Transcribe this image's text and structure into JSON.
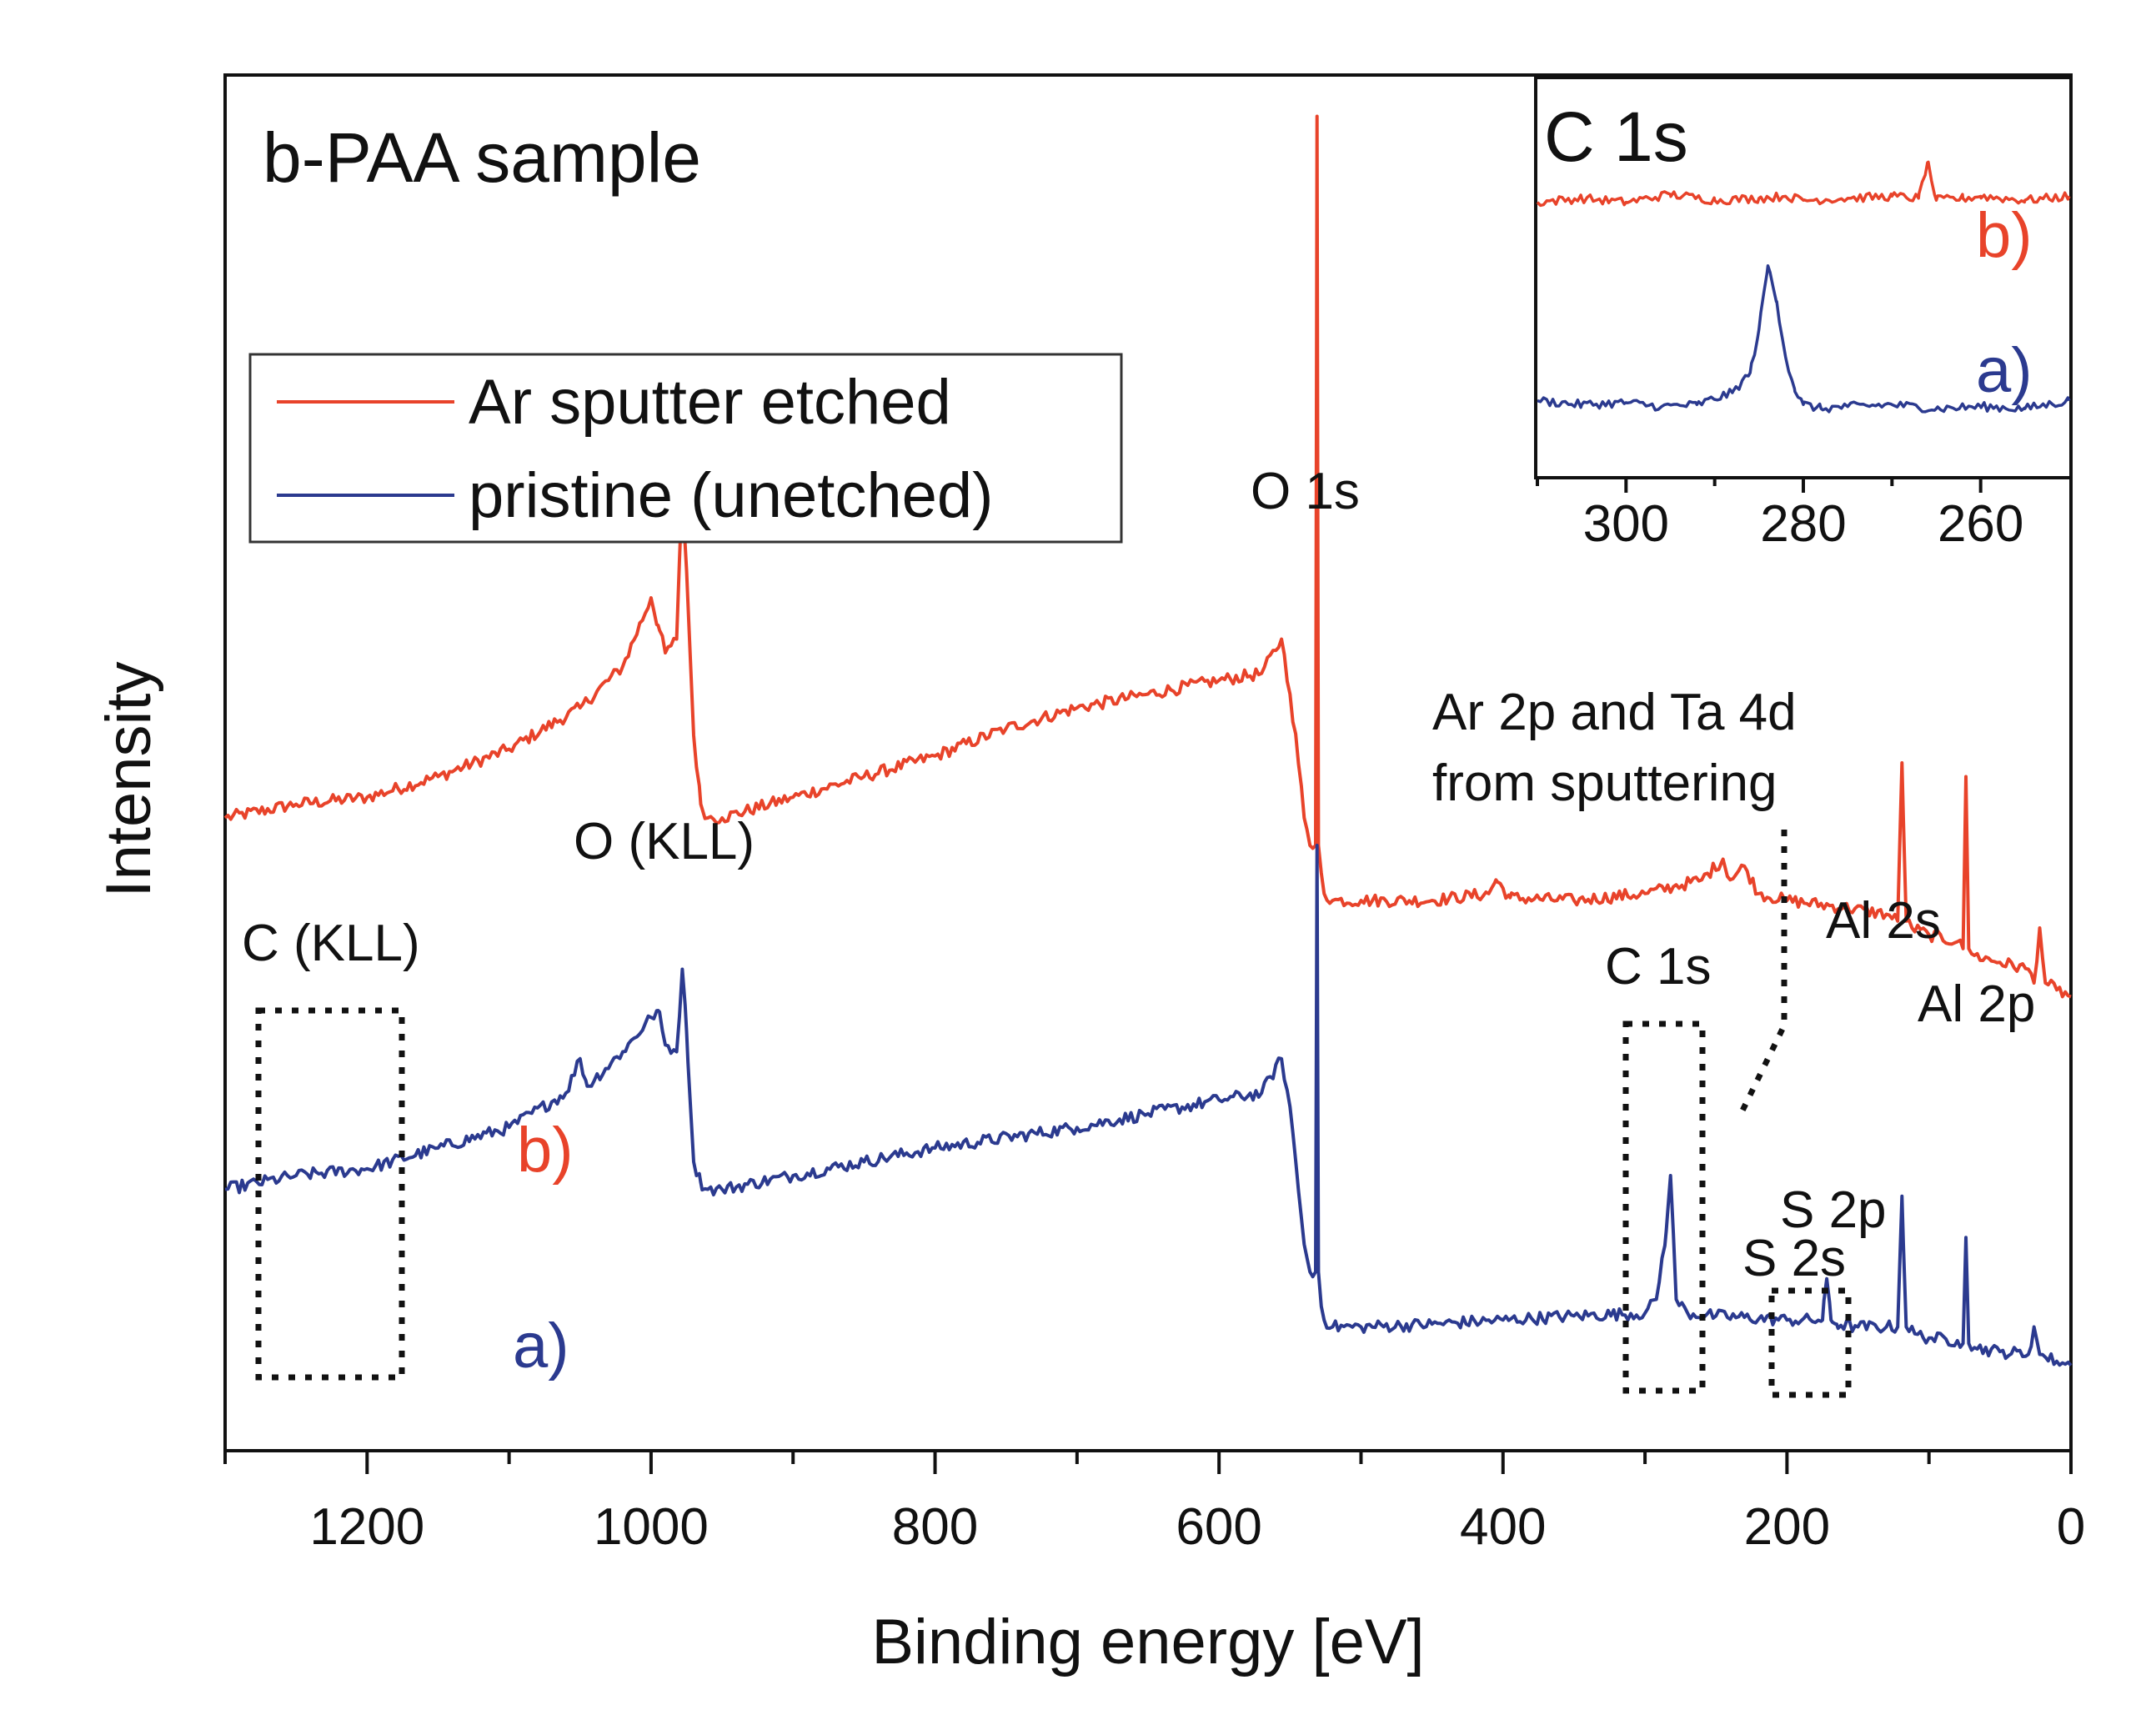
{
  "chart_data": [
    {
      "type": "line",
      "title": "b-PAA sample",
      "xlabel": "Binding energy [eV]",
      "ylabel": "Intensity",
      "xlim": [
        1300,
        0
      ],
      "ylim": [
        0,
        10
      ],
      "x_ticks": [
        1200,
        1000,
        800,
        600,
        400,
        200,
        0
      ],
      "x_tick_labels": [
        "1200",
        "1000",
        "800",
        "600",
        "400",
        "200",
        "0"
      ],
      "grid": false,
      "legend": {
        "position": "top-left",
        "entries": [
          {
            "label": "Ar sputter etched",
            "color": "#e8432a"
          },
          {
            "label": "pristine (unetched)",
            "color": "#2b3a8f"
          }
        ]
      },
      "series": [
        {
          "name": "Ar sputter etched",
          "tag": "b)",
          "color": "#e8432a",
          "x": [
            1300,
            1250,
            1200,
            1150,
            1100,
            1050,
            1020,
            1000,
            995,
            990,
            982,
            978,
            975,
            970,
            965,
            960,
            950,
            900,
            850,
            800,
            750,
            700,
            650,
            600,
            570,
            556,
            550,
            545,
            540,
            536,
            532,
            531,
            530,
            528,
            526,
            520,
            500,
            450,
            410,
            405,
            395,
            350,
            300,
            280,
            260,
            245,
            240,
            230,
            220,
            200,
            160,
            130,
            122,
            119,
            116,
            112,
            100,
            80,
            76,
            74,
            72,
            68,
            50,
            30,
            26,
            22,
            18,
            10,
            0
          ],
          "values": [
            4.6,
            4.7,
            4.75,
            4.9,
            5.1,
            5.4,
            5.7,
            6.2,
            6.0,
            5.8,
            5.9,
            7.0,
            6.4,
            5.2,
            4.7,
            4.6,
            4.6,
            4.75,
            4.9,
            5.05,
            5.25,
            5.4,
            5.5,
            5.6,
            5.65,
            5.9,
            5.5,
            5.1,
            4.6,
            4.4,
            4.4,
            9.7,
            4.4,
            4.2,
            4.05,
            4.0,
            4.0,
            4.0,
            4.05,
            4.15,
            4.02,
            4.0,
            4.05,
            4.1,
            4.15,
            4.3,
            4.15,
            4.25,
            4.05,
            4.0,
            3.95,
            3.9,
            3.85,
            5.0,
            3.85,
            3.8,
            3.75,
            3.7,
            3.65,
            4.9,
            3.65,
            3.6,
            3.55,
            3.5,
            3.4,
            3.8,
            3.4,
            3.35,
            3.3
          ]
        },
        {
          "name": "pristine (unetched)",
          "tag": "a)",
          "color": "#2b3a8f",
          "x": [
            1300,
            1250,
            1200,
            1150,
            1100,
            1060,
            1050,
            1045,
            1020,
            1000,
            995,
            990,
            982,
            978,
            975,
            970,
            965,
            960,
            950,
            900,
            850,
            800,
            700,
            650,
            600,
            570,
            556,
            550,
            545,
            540,
            536,
            532,
            531,
            530,
            528,
            526,
            520,
            500,
            450,
            400,
            350,
            300,
            292,
            285,
            282,
            278,
            270,
            250,
            200,
            175,
            172,
            169,
            165,
            150,
            130,
            122,
            119,
            116,
            110,
            100,
            80,
            76,
            74,
            72,
            68,
            50,
            30,
            26,
            22,
            18,
            10,
            0
          ],
          "values": [
            1.9,
            2.0,
            2.05,
            2.2,
            2.35,
            2.6,
            2.85,
            2.65,
            2.9,
            3.15,
            3.2,
            2.95,
            2.9,
            3.5,
            3.05,
            2.1,
            1.95,
            1.9,
            1.9,
            2.0,
            2.1,
            2.2,
            2.35,
            2.45,
            2.55,
            2.6,
            2.85,
            2.5,
            2.0,
            1.5,
            1.3,
            1.3,
            4.4,
            1.3,
            1.05,
            0.95,
            0.9,
            0.9,
            0.92,
            0.95,
            0.98,
            1.0,
            1.1,
            1.6,
            2.0,
            1.1,
            1.0,
            0.98,
            0.95,
            0.95,
            1.25,
            0.95,
            0.92,
            0.9,
            0.9,
            0.9,
            1.85,
            0.9,
            0.85,
            0.82,
            0.8,
            0.78,
            1.55,
            0.78,
            0.75,
            0.72,
            0.7,
            0.9,
            0.7,
            0.68,
            0.65,
            0.62
          ]
        }
      ],
      "annotations": [
        {
          "text": "O 1s"
        },
        {
          "text": "O (KLL)"
        },
        {
          "text": "C (KLL)"
        },
        {
          "text": "C 1s"
        },
        {
          "text": "Ar 2p and Ta 4d"
        },
        {
          "text": "from sputtering"
        },
        {
          "text": "Al 2s"
        },
        {
          "text": "Al 2p"
        },
        {
          "text": "S 2p"
        },
        {
          "text": "S 2s"
        }
      ],
      "series_tags": [
        "b)",
        "a)"
      ]
    },
    {
      "type": "line",
      "title": "C 1s",
      "xlabel": "",
      "ylabel": "",
      "xlim": [
        310,
        250
      ],
      "ylim": [
        0,
        10
      ],
      "x_ticks": [
        300,
        280,
        260
      ],
      "x_tick_labels": [
        "300",
        "280",
        "260"
      ],
      "series_tags": [
        "b)",
        "a)"
      ],
      "series": [
        {
          "name": "Ar sputter etched",
          "tag": "b)",
          "color": "#e8432a",
          "x": [
            310,
            305,
            300,
            295,
            290,
            285,
            282,
            280,
            275,
            270,
            267,
            266,
            265,
            262,
            260,
            255,
            250
          ],
          "values": [
            6.9,
            7.0,
            6.9,
            7.1,
            6.95,
            7.0,
            7.05,
            6.95,
            7.0,
            7.05,
            7.0,
            7.9,
            6.95,
            7.0,
            7.05,
            6.95,
            7.05
          ]
        },
        {
          "name": "pristine (unetched)",
          "tag": "a)",
          "color": "#2b3a8f",
          "x": [
            310,
            305,
            300,
            296,
            292,
            288,
            286,
            285,
            284,
            283,
            282,
            281,
            280,
            278,
            275,
            270,
            265,
            260,
            255,
            250
          ],
          "values": [
            1.9,
            1.8,
            1.85,
            1.75,
            1.8,
            2.1,
            2.6,
            3.7,
            5.3,
            4.4,
            3.0,
            2.2,
            1.8,
            1.7,
            1.75,
            1.8,
            1.7,
            1.75,
            1.7,
            1.9
          ]
        }
      ]
    }
  ]
}
